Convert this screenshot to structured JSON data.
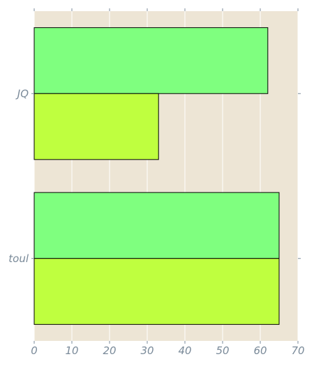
{
  "chart_data": {
    "type": "bar",
    "orientation": "horizontal",
    "categories": [
      "JQ",
      "toul"
    ],
    "series": [
      {
        "values": [
          62,
          65
        ],
        "color": "#7fff7f"
      },
      {
        "values": [
          33,
          65
        ],
        "color": "#bfff3f"
      }
    ],
    "xlim": [
      0,
      70
    ],
    "xticks": [
      0,
      10,
      20,
      30,
      40,
      50,
      60,
      70
    ],
    "grid": true,
    "background": "#ede5d5",
    "grid_color": "#ffffff",
    "tick_color": "#7a8a99"
  }
}
